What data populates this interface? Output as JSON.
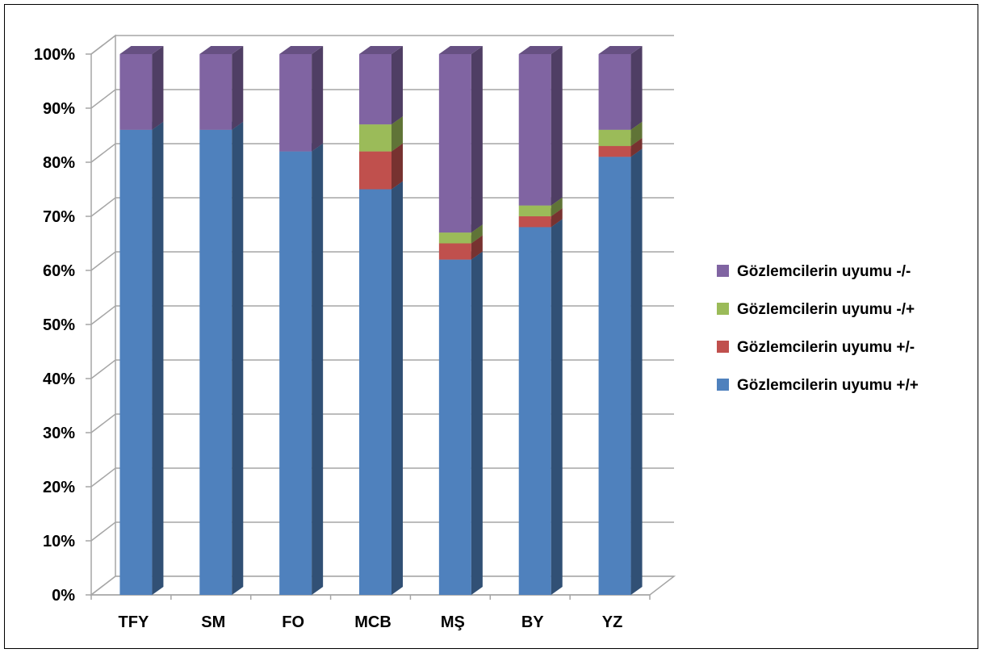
{
  "chart_data": {
    "type": "bar",
    "stacked": true,
    "percent_stacked": true,
    "three_d": true,
    "title": "",
    "xlabel": "",
    "ylabel": "",
    "categories": [
      "TFY",
      "SM",
      "FO",
      "MCB",
      "MŞ",
      "BY",
      "YZ"
    ],
    "y_ticks": [
      "0%",
      "10%",
      "20%",
      "30%",
      "40%",
      "50%",
      "60%",
      "70%",
      "80%",
      "90%",
      "100%"
    ],
    "ylim": [
      0,
      100
    ],
    "grid": true,
    "legend_position": "right",
    "series": [
      {
        "name": "Gözlemcilerin uyumu +/+",
        "color": "#4F81BD",
        "values": [
          86,
          86,
          82,
          75,
          62,
          68,
          81
        ]
      },
      {
        "name": "Gözlemcilerin uyumu +/-",
        "color": "#C0504D",
        "values": [
          0,
          0,
          0,
          7,
          3,
          2,
          2
        ]
      },
      {
        "name": "Gözlemcilerin uyumu -/+",
        "color": "#9BBB59",
        "values": [
          0,
          0,
          0,
          5,
          2,
          2,
          3
        ]
      },
      {
        "name": "Gözlemcilerin uyumu -/-",
        "color": "#8064A2",
        "values": [
          14,
          14,
          18,
          13,
          33,
          28,
          14
        ]
      }
    ]
  }
}
